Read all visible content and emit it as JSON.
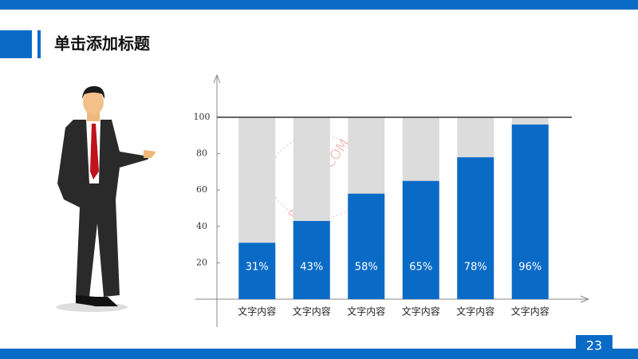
{
  "title": "单击添加标题",
  "page_number": "23",
  "watermark": "88SUCAI.COM",
  "chart_data": {
    "type": "bar",
    "categories": [
      "文字内容",
      "文字内容",
      "文字内容",
      "文字内容",
      "文字内容",
      "文字内容"
    ],
    "values": [
      31,
      43,
      58,
      65,
      78,
      96
    ],
    "value_labels": [
      "31%",
      "43%",
      "58%",
      "65%",
      "78%",
      "96%"
    ],
    "color": "#0a6bc6",
    "track_color": "#dcdcdc",
    "ylim": [
      0,
      100
    ],
    "yticks": [
      20,
      40,
      60,
      80,
      100
    ]
  }
}
